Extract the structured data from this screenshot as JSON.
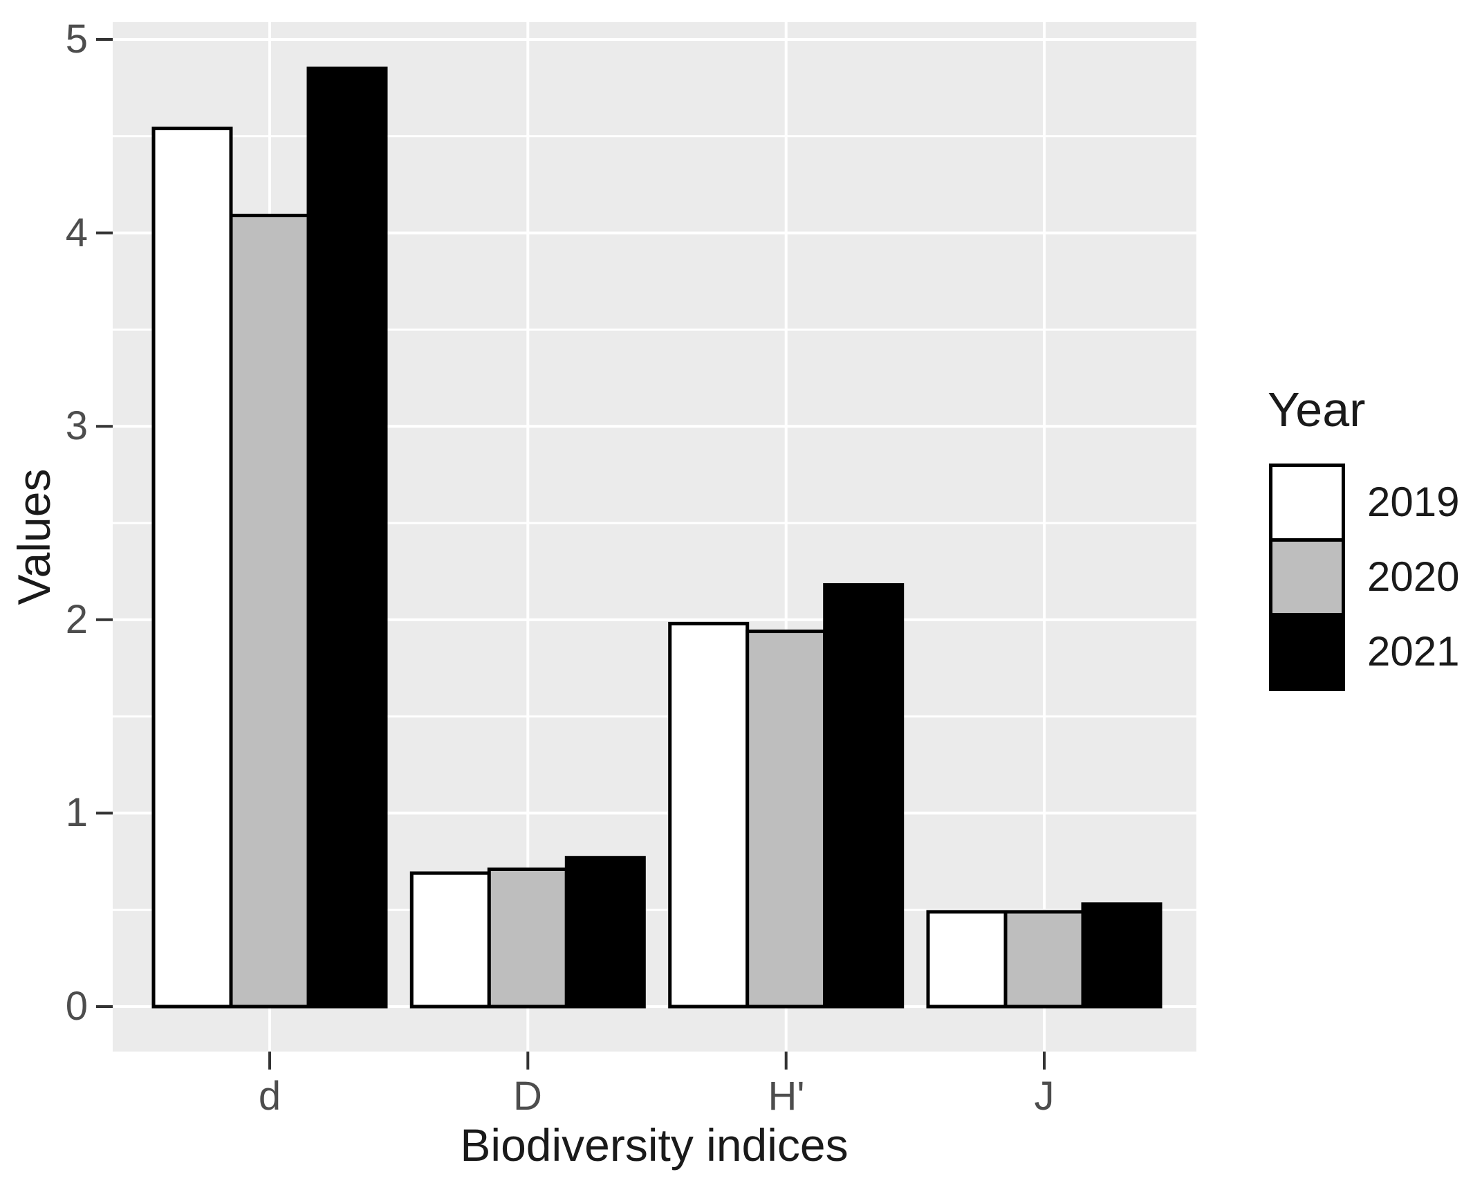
{
  "chart_data": {
    "type": "bar",
    "title": "",
    "xlabel": "Biodiversity indices",
    "ylabel": "Values",
    "categories": [
      "d",
      "D",
      "H'",
      "J"
    ],
    "series": [
      {
        "name": "2019",
        "fill": "#FFFFFF",
        "values": [
          4.54,
          0.69,
          1.98,
          0.49
        ]
      },
      {
        "name": "2020",
        "fill": "#BEBEBE",
        "values": [
          4.09,
          0.71,
          1.94,
          0.49
        ]
      },
      {
        "name": "2021",
        "fill": "#000000",
        "values": [
          4.85,
          0.77,
          2.18,
          0.53
        ]
      }
    ],
    "ylim": [
      0,
      5
    ],
    "yticks": [
      0,
      1,
      2,
      3,
      4,
      5
    ],
    "y_tick_labels": [
      "0",
      "1",
      "2",
      "3",
      "4",
      "5"
    ],
    "y_minor_ticks": [
      0.5,
      1.5,
      2.5,
      3.5,
      4.5
    ],
    "grid": true,
    "legend_title": "Year",
    "legend_position": "right",
    "bar_outline_color": "#000000",
    "panel_background": "#EBEBEB",
    "gridline_color": "#FFFFFF",
    "tick_color": "#333333",
    "axis_text_color": "#4D4D4D",
    "axis_title_color": "#1A1A1A"
  }
}
